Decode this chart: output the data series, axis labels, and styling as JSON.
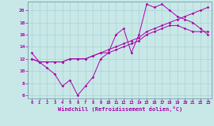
{
  "xlabel": "Windchill (Refroidissement éolien,°C)",
  "line_color": "#aa00aa",
  "bg_color": "#c8e8e8",
  "grid_color": "#aad0d0",
  "xlim": [
    -0.5,
    23.5
  ],
  "ylim": [
    5.5,
    21.5
  ],
  "xticks": [
    0,
    1,
    2,
    3,
    4,
    5,
    6,
    7,
    8,
    9,
    10,
    11,
    12,
    13,
    14,
    15,
    16,
    17,
    18,
    19,
    20,
    21,
    22,
    23
  ],
  "yticks": [
    6,
    8,
    10,
    12,
    14,
    16,
    18,
    20
  ],
  "line1_x": [
    0,
    1,
    2,
    3,
    4,
    5,
    6,
    7,
    8,
    9,
    10,
    11,
    12,
    13,
    14,
    15,
    16,
    17,
    18,
    19,
    20,
    21,
    22,
    23
  ],
  "line1_y": [
    13,
    11.5,
    10.5,
    9.5,
    7.5,
    8.5,
    6,
    7.5,
    9,
    12,
    13,
    16,
    17,
    13,
    16,
    21,
    20.5,
    21,
    20,
    19,
    18.5,
    18,
    17,
    16
  ],
  "line2_x": [
    0,
    1,
    2,
    3,
    4,
    5,
    6,
    7,
    8,
    9,
    10,
    11,
    12,
    13,
    14,
    15,
    16,
    17,
    18,
    19,
    20,
    21,
    22,
    23
  ],
  "line2_y": [
    12,
    11.5,
    11.5,
    11.5,
    11.5,
    12,
    12,
    12,
    12.5,
    13,
    13.5,
    14,
    14.5,
    15,
    15.5,
    16.5,
    17,
    17.5,
    18,
    18.5,
    19,
    19.5,
    20,
    20.5
  ],
  "line3_x": [
    0,
    1,
    2,
    3,
    4,
    5,
    6,
    7,
    8,
    9,
    10,
    11,
    12,
    13,
    14,
    15,
    16,
    17,
    18,
    19,
    20,
    21,
    22,
    23
  ],
  "line3_y": [
    12,
    11.5,
    11.5,
    11.5,
    11.5,
    12,
    12,
    12,
    12.5,
    13,
    13,
    13.5,
    14,
    14.5,
    15,
    16,
    16.5,
    17,
    17.5,
    17.5,
    17,
    16.5,
    16.5,
    16.5
  ]
}
